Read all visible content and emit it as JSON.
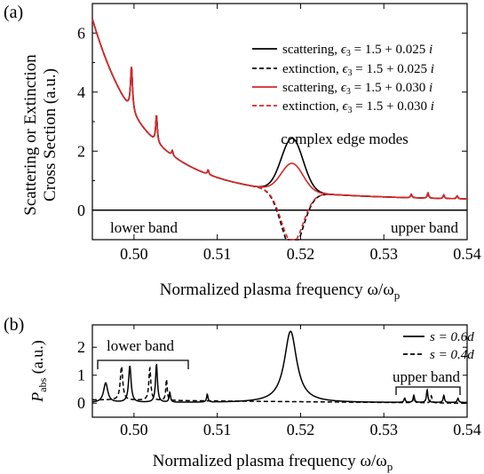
{
  "panel_a": {
    "label": "(a)",
    "ylabel_line1": "Scattering or Extinction",
    "ylabel_line2": "Cross Section (a.u.)",
    "xlabel": "Normalized plasma frequency ω/ω",
    "xlabel_sub": "p",
    "annotations": {
      "complex_edge_modes": "complex edge modes",
      "lower_band": "lower band",
      "upper_band": "upper band"
    },
    "legend": [
      {
        "label": "scattering, ",
        "eps": "ϵ",
        "eps_sub": "3",
        "value": " = 1.5 + 0.025 ",
        "imag": "i",
        "color": "#000000",
        "dash": "solid"
      },
      {
        "label": "extinction, ",
        "eps": "ϵ",
        "eps_sub": "3",
        "value": " = 1.5 + 0.025 ",
        "imag": "i",
        "color": "#000000",
        "dash": "dashed"
      },
      {
        "label": "scattering, ",
        "eps": "ϵ",
        "eps_sub": "3",
        "value": " = 1.5 + 0.030 ",
        "imag": "i",
        "color": "#d62728",
        "dash": "solid"
      },
      {
        "label": "extinction, ",
        "eps": "ϵ",
        "eps_sub": "3",
        "value": " = 1.5 + 0.030 ",
        "imag": "i",
        "color": "#d62728",
        "dash": "dashed"
      }
    ]
  },
  "panel_b": {
    "label": "(b)",
    "ylabel_main": "P",
    "ylabel_sub": "abs",
    "ylabel_unit": " (a.u.)",
    "xlabel": "Normalized plasma frequency ω/ω",
    "xlabel_sub": "p",
    "annotations": {
      "lower_band": "lower band",
      "upper_band": "upper band"
    },
    "legend": [
      {
        "label": "s = 0.6d",
        "dash": "solid"
      },
      {
        "label": "s = 0.4d",
        "dash": "dashed"
      }
    ]
  },
  "chart_data": [
    {
      "type": "line",
      "xlim": [
        0.495,
        0.54
      ],
      "ylim": [
        -1,
        7
      ],
      "xticks": [
        "0.50",
        "0.51",
        "0.52",
        "0.53",
        "0.54"
      ],
      "yticks": [
        "0",
        "2",
        "4",
        "6"
      ],
      "grid": false,
      "legend_position": "top-right",
      "baseline_y": 0,
      "background": {
        "A": 0.3018,
        "p": 1.1,
        "x0": 0.4925
      },
      "peaks": [
        {
          "x": 0.4997,
          "height": 1.5,
          "width": 0.00015
        },
        {
          "x": 0.5027,
          "height": 0.9,
          "width": 0.00012
        },
        {
          "x": 0.5046,
          "height": 0.18,
          "width": 0.0001
        },
        {
          "x": 0.5089,
          "height": 0.15,
          "width": 0.0001
        },
        {
          "x": 0.5333,
          "height": 0.12,
          "width": 0.0001
        },
        {
          "x": 0.5353,
          "height": 0.18,
          "width": 0.0001
        },
        {
          "x": 0.5372,
          "height": 0.12,
          "width": 0.0001
        },
        {
          "x": 0.5388,
          "height": 0.1,
          "width": 0.0001
        }
      ],
      "edge_mode_center": 0.519,
      "edge_mode_width": 0.0013,
      "series": [
        {
          "name": "scattering, ϵ3 = 1.5 + 0.025 i",
          "color": "#000000",
          "dash": "solid",
          "edge_peak": 1.8,
          "edge_sign": 1
        },
        {
          "name": "extinction, ϵ3 = 1.5 + 0.025 i",
          "color": "#000000",
          "dash": "dashed",
          "edge_peak": 1.35,
          "edge_sign": -1
        },
        {
          "name": "scattering, ϵ3 = 1.5 + 0.030 i",
          "color": "#d62728",
          "dash": "solid",
          "edge_peak": 0.95,
          "edge_sign": 1
        },
        {
          "name": "extinction, ϵ3 = 1.5 + 0.030 i",
          "color": "#d62728",
          "dash": "dashed",
          "edge_peak": 1.2,
          "edge_sign": -1
        }
      ]
    },
    {
      "type": "line",
      "xlim": [
        0.495,
        0.54
      ],
      "ylim": [
        -0.5,
        2.8
      ],
      "xticks": [
        "0.50",
        "0.51",
        "0.52",
        "0.53",
        "0.54"
      ],
      "yticks": [
        "0",
        "1",
        "2"
      ],
      "grid": false,
      "legend_position": "top-right",
      "series": [
        {
          "name": "s = 0.6d",
          "dash": "solid",
          "baseline": 0.02,
          "peaks": [
            {
              "x": 0.4966,
              "height": 0.7,
              "width": 0.0003
            },
            {
              "x": 0.4995,
              "height": 1.3,
              "width": 0.00018
            },
            {
              "x": 0.5027,
              "height": 1.35,
              "width": 0.00014
            },
            {
              "x": 0.5043,
              "height": 0.35,
              "width": 0.0001
            },
            {
              "x": 0.5088,
              "height": 0.28,
              "width": 0.0001
            },
            {
              "x": 0.5188,
              "height": 2.55,
              "width": 0.0009
            },
            {
              "x": 0.5325,
              "height": 0.15,
              "width": 0.0001
            },
            {
              "x": 0.5336,
              "height": 0.25,
              "width": 0.0001
            },
            {
              "x": 0.5352,
              "height": 0.45,
              "width": 0.0001
            },
            {
              "x": 0.5372,
              "height": 0.25,
              "width": 0.0001
            },
            {
              "x": 0.5389,
              "height": 0.15,
              "width": 0.0001
            }
          ]
        },
        {
          "name": "s = 0.4d",
          "dash": "dashed",
          "baseline": 0.12,
          "baseline_slope": -0.12,
          "peaks": [
            {
              "x": 0.4985,
              "height": 1.2,
              "width": 0.00018
            },
            {
              "x": 0.5019,
              "height": 1.15,
              "width": 0.00014
            },
            {
              "x": 0.5039,
              "height": 0.75,
              "width": 0.0001
            },
            {
              "x": 0.5336,
              "height": 0.2,
              "width": 0.0001
            },
            {
              "x": 0.5357,
              "height": 0.25,
              "width": 0.0001
            }
          ]
        }
      ]
    }
  ]
}
